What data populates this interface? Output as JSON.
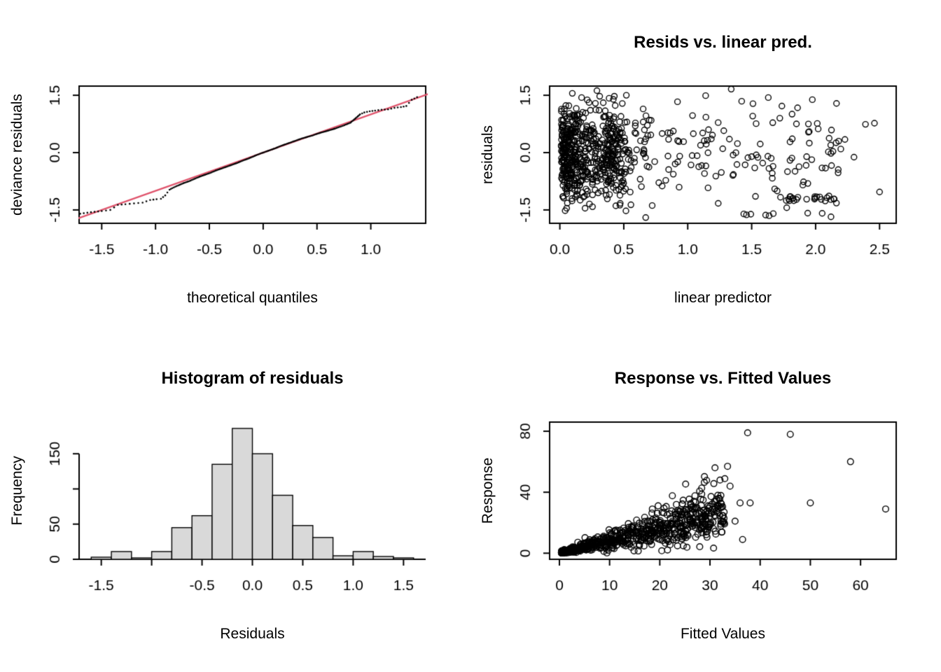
{
  "figure": {
    "background": "#ffffff",
    "text_color": "#000000"
  },
  "chart_data": [
    {
      "id": "qq-plot",
      "type": "scatter",
      "title": "",
      "xlabel": "theoretical quantiles",
      "ylabel": "deviance residuals",
      "xlim": [
        -1.71,
        1.51
      ],
      "ylim": [
        -1.85,
        1.74
      ],
      "xticks": {
        "values": [
          -1.5,
          -1.0,
          -0.5,
          0.0,
          0.5,
          1.0
        ],
        "labels": [
          "-1.5",
          "-1.0",
          "-0.5",
          "0.0",
          "0.5",
          "1.0"
        ]
      },
      "yticks": {
        "values": [
          -1.5,
          0.0,
          1.5
        ],
        "labels": [
          "-1.5",
          "0.0",
          "1.5"
        ]
      },
      "box": true,
      "ref_line": {
        "from": [
          -1.85,
          -1.85
        ],
        "to": [
          1.74,
          1.74
        ],
        "color": "#DF536B",
        "width": 2.4
      },
      "point_style": {
        "type": "dot",
        "radius": 1.3,
        "color": "#000000"
      },
      "dense_abs_x": 0.9,
      "qq_points": [
        [
          -1.7,
          -1.6
        ],
        [
          -1.6,
          -1.56
        ],
        [
          -1.5,
          -1.53
        ],
        [
          -1.42,
          -1.5
        ],
        [
          -1.35,
          -1.37
        ],
        [
          -1.28,
          -1.35
        ],
        [
          -1.2,
          -1.33
        ],
        [
          -1.12,
          -1.31
        ],
        [
          -1.05,
          -1.24
        ],
        [
          -0.99,
          -1.22
        ],
        [
          -0.95,
          -1.21
        ],
        [
          -0.91,
          -1.12
        ],
        [
          -0.87,
          -0.97
        ],
        [
          -0.83,
          -0.91
        ],
        [
          -0.79,
          -0.86
        ],
        [
          -0.74,
          -0.8
        ],
        [
          -0.69,
          -0.75
        ],
        [
          -0.64,
          -0.69
        ],
        [
          -0.59,
          -0.63
        ],
        [
          -0.54,
          -0.58
        ],
        [
          -0.49,
          -0.53
        ],
        [
          -0.44,
          -0.47
        ],
        [
          -0.39,
          -0.42
        ],
        [
          -0.34,
          -0.37
        ],
        [
          -0.29,
          -0.32
        ],
        [
          -0.24,
          -0.27
        ],
        [
          -0.19,
          -0.21
        ],
        [
          -0.14,
          -0.16
        ],
        [
          -0.09,
          -0.1
        ],
        [
          -0.04,
          -0.04
        ],
        [
          0.01,
          0.01
        ],
        [
          0.06,
          0.06
        ],
        [
          0.11,
          0.11
        ],
        [
          0.16,
          0.17
        ],
        [
          0.21,
          0.22
        ],
        [
          0.26,
          0.27
        ],
        [
          0.31,
          0.32
        ],
        [
          0.36,
          0.37
        ],
        [
          0.41,
          0.41
        ],
        [
          0.46,
          0.45
        ],
        [
          0.51,
          0.5
        ],
        [
          0.56,
          0.54
        ],
        [
          0.61,
          0.58
        ],
        [
          0.67,
          0.63
        ],
        [
          0.74,
          0.7
        ],
        [
          0.81,
          0.78
        ],
        [
          0.86,
          0.9
        ],
        [
          0.9,
          1.0
        ],
        [
          0.94,
          1.05
        ],
        [
          0.99,
          1.08
        ],
        [
          1.04,
          1.1
        ],
        [
          1.1,
          1.12
        ],
        [
          1.16,
          1.13
        ],
        [
          1.22,
          1.17
        ],
        [
          1.28,
          1.19
        ],
        [
          1.33,
          1.22
        ],
        [
          1.38,
          1.38
        ],
        [
          1.43,
          1.45
        ]
      ]
    },
    {
      "id": "resids-vs-linear-pred",
      "type": "scatter",
      "title": "Resids vs. linear pred.",
      "xlabel": "linear predictor",
      "ylabel": "residuals",
      "xlim": [
        -0.08,
        2.63
      ],
      "ylim": [
        -1.85,
        1.74
      ],
      "xticks": {
        "values": [
          0.0,
          0.5,
          1.0,
          1.5,
          2.0,
          2.5
        ],
        "labels": [
          "0.0",
          "0.5",
          "1.0",
          "1.5",
          "2.0",
          "2.5"
        ]
      },
      "yticks": {
        "values": [
          -1.5,
          0.0,
          1.5
        ],
        "labels": [
          "-1.5",
          "0.0",
          "1.5"
        ]
      },
      "box": true,
      "seed": 20,
      "point_style": {
        "type": "circle",
        "radius": 4.0,
        "lineWidth": 1.4,
        "color": "#000000"
      },
      "clouds": [
        {
          "n": 470,
          "x": {
            "dist": "exp",
            "lo": 0.01,
            "scale": 0.17,
            "max": 2.55
          },
          "y": {
            "dist": "normal",
            "mean": -0.05,
            "sd": 0.62,
            "min": -1.7,
            "max": 1.55
          }
        },
        {
          "n": 130,
          "x": {
            "dist": "normal",
            "mean": 0.42,
            "sd": 0.05,
            "min": 0.3,
            "max": 0.55
          },
          "y": {
            "dist": "normal",
            "mean": -0.05,
            "sd": 0.6,
            "min": -1.65,
            "max": 1.5
          }
        },
        {
          "n": 120,
          "x": {
            "dist": "pow",
            "lo": 0.5,
            "hi": 2.25,
            "k": 0.95
          },
          "y": {
            "dist": "normal",
            "mean": -0.1,
            "sd": 0.65,
            "min": -1.68,
            "max": 1.5
          }
        },
        {
          "n": 24,
          "x": {
            "dist": "uniform",
            "lo": 1.7,
            "hi": 2.15
          },
          "y": {
            "dist": "uniform",
            "lo": -1.27,
            "hi": -1.13
          }
        },
        {
          "n": 7,
          "x": {
            "dist": "uniform",
            "lo": 1.35,
            "hi": 2.1
          },
          "y": {
            "dist": "uniform",
            "lo": -1.67,
            "hi": -1.58
          }
        }
      ],
      "points": [
        [
          2.39,
          0.74
        ],
        [
          2.46,
          0.77
        ],
        [
          2.5,
          -1.03
        ],
        [
          0.29,
          1.62
        ],
        [
          0.52,
          1.5
        ],
        [
          1.34,
          1.66
        ],
        [
          1.14,
          1.49
        ],
        [
          0.17,
          1.44
        ],
        [
          1.51,
          1.28
        ],
        [
          1.63,
          1.44
        ],
        [
          0.92,
          1.33
        ],
        [
          2.18,
          0.3
        ],
        [
          2.3,
          -0.12
        ],
        [
          1.95,
          0.55
        ],
        [
          2.05,
          -0.4
        ],
        [
          1.72,
          0.9
        ],
        [
          1.85,
          0.75
        ],
        [
          1.78,
          -0.5
        ],
        [
          2.1,
          0.02
        ],
        [
          1.9,
          -0.85
        ],
        [
          2.02,
          0.62
        ],
        [
          2.12,
          -0.02
        ],
        [
          1.8,
          0.28
        ],
        [
          1.68,
          -0.95
        ]
      ]
    },
    {
      "id": "histogram-of-residuals",
      "type": "bar",
      "title": "Histogram of residuals",
      "xlabel": "Residuals",
      "ylabel": "Frequency",
      "xlim": [
        -1.72,
        1.72
      ],
      "ylim": [
        0,
        195
      ],
      "xticks": {
        "values": [
          -1.5,
          -1.0,
          -0.5,
          0.0,
          0.5,
          1.0,
          1.5
        ],
        "labels": [
          "-1.5",
          "",
          "-0.5",
          "0.0",
          "0.5",
          "1.0",
          "1.5"
        ]
      },
      "yticks": {
        "values": [
          0,
          50,
          100,
          150
        ],
        "labels": [
          "0",
          "50",
          "",
          "150"
        ]
      },
      "box": false,
      "bar_fill": "#d9d9d9",
      "bar_stroke": "#000000",
      "bins": {
        "start": -1.6,
        "width": 0.2,
        "counts": [
          3,
          11,
          2,
          11,
          45,
          62,
          135,
          186,
          150,
          91,
          48,
          31,
          5,
          11,
          4,
          2
        ]
      }
    },
    {
      "id": "response-vs-fitted",
      "type": "scatter",
      "title": "Response vs. Fitted Values",
      "xlabel": "Fitted Values",
      "ylabel": "Response",
      "xlim": [
        -1.95,
        67.1
      ],
      "ylim": [
        -4,
        86
      ],
      "xticks": {
        "values": [
          0,
          10,
          20,
          30,
          40,
          50,
          60
        ],
        "labels": [
          "0",
          "10",
          "20",
          "30",
          "40",
          "50",
          "60"
        ]
      },
      "yticks": {
        "values": [
          0,
          40,
          80
        ],
        "labels": [
          "0",
          "40",
          "80"
        ]
      },
      "box": true,
      "seed": 77,
      "point_style": {
        "type": "circle",
        "radius": 4.3,
        "lineWidth": 1.4,
        "color": "#000000"
      },
      "clouds": [
        {
          "n": 300,
          "mode": "wedge",
          "x": {
            "dist": "pow",
            "lo": 0.4,
            "hi": 30,
            "k": 2.1
          },
          "ratio": {
            "dist": "normal",
            "mean": 0.85,
            "sd": 0.3,
            "min": 0.15,
            "max": 1.8
          },
          "noise": {
            "dist": "normal",
            "mean": 0,
            "sd": 0.7
          },
          "ymin": 0.2,
          "ymax": 57
        },
        {
          "n": 430,
          "mode": "wedge",
          "x": {
            "dist": "pow",
            "lo": 2,
            "hi": 33,
            "k": 0.8
          },
          "ratio": {
            "dist": "normal",
            "mean": 0.82,
            "sd": 0.3,
            "min": 0.12,
            "max": 1.75
          },
          "noise": {
            "dist": "normal",
            "mean": 0,
            "sd": 1.0
          },
          "ymin": 0.2,
          "ymax": 57
        }
      ],
      "points": [
        [
          37.5,
          79
        ],
        [
          46,
          78
        ],
        [
          58,
          60
        ],
        [
          65,
          29
        ],
        [
          50,
          33
        ],
        [
          36,
          33
        ],
        [
          33.5,
          57
        ],
        [
          31,
          56
        ],
        [
          35,
          21
        ],
        [
          38,
          33
        ],
        [
          36.5,
          9
        ],
        [
          34,
          44
        ],
        [
          32,
          48
        ]
      ]
    }
  ]
}
